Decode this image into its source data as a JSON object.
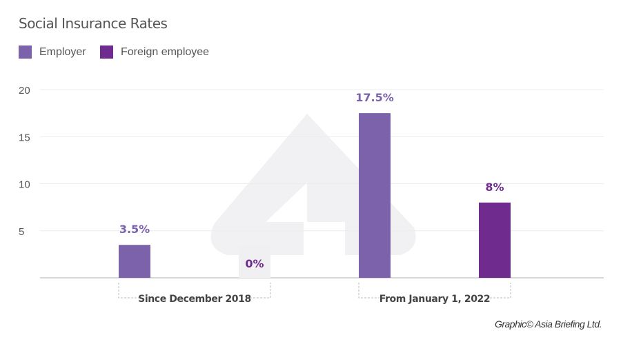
{
  "chart_data": {
    "type": "bar",
    "title": "Social Insurance Rates",
    "categories": [
      "Since December 2018",
      "From January 1, 2022"
    ],
    "series": [
      {
        "name": "Employer",
        "color": "#7b62ab",
        "values": [
          3.5,
          17.5
        ],
        "labels": [
          "3.5%",
          "17.5%"
        ]
      },
      {
        "name": "Foreign employee",
        "color": "#6f2c8e",
        "values": [
          0,
          8
        ],
        "labels": [
          "0%",
          "8%"
        ]
      }
    ],
    "yticks": [
      5,
      10,
      15,
      20
    ],
    "ylim": [
      0,
      20
    ],
    "grid": true,
    "legend_position": "top-left",
    "xlabel": "",
    "ylabel": ""
  },
  "credit": "Graphic© Asia Briefing Ltd."
}
